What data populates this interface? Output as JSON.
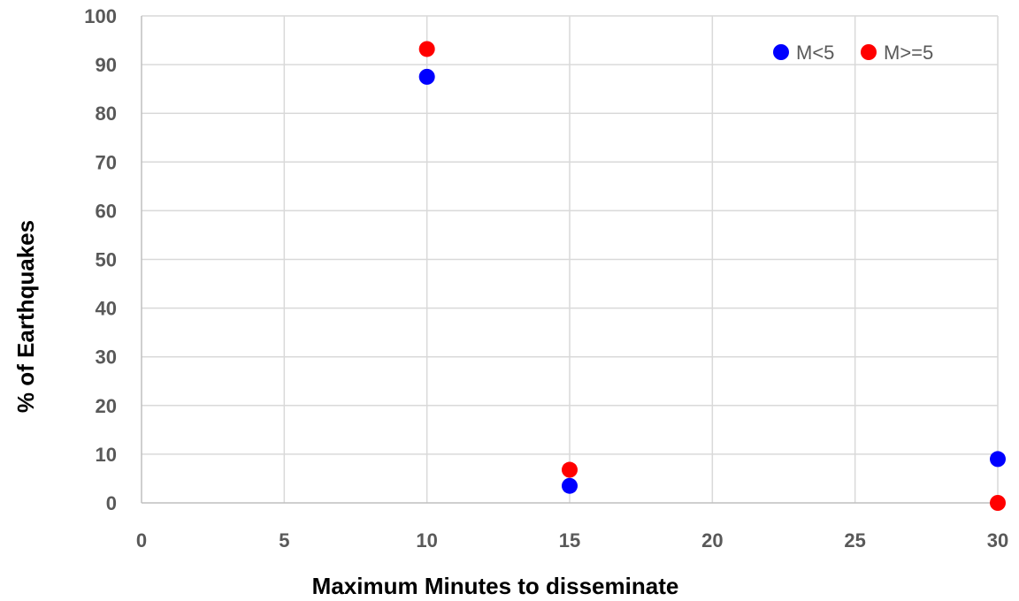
{
  "chart_data": {
    "type": "scatter",
    "xlabel": "Maximum Minutes to disseminate",
    "ylabel": "% of Earthquakes",
    "xlim": [
      0,
      30
    ],
    "ylim": [
      0,
      100
    ],
    "x_ticks": [
      0,
      5,
      10,
      15,
      20,
      25,
      30
    ],
    "y_ticks": [
      0,
      10,
      20,
      30,
      40,
      50,
      60,
      70,
      80,
      90,
      100
    ],
    "grid": true,
    "legend_position": "top-right",
    "series": [
      {
        "name": "M<5",
        "color": "#0000ff",
        "points": [
          {
            "x": 10,
            "y": 87.5
          },
          {
            "x": 15,
            "y": 3.5
          },
          {
            "x": 30,
            "y": 9
          }
        ]
      },
      {
        "name": "M>=5",
        "color": "#ff0000",
        "points": [
          {
            "x": 10,
            "y": 93.2
          },
          {
            "x": 15,
            "y": 6.8
          },
          {
            "x": 30,
            "y": 0
          }
        ]
      }
    ]
  }
}
